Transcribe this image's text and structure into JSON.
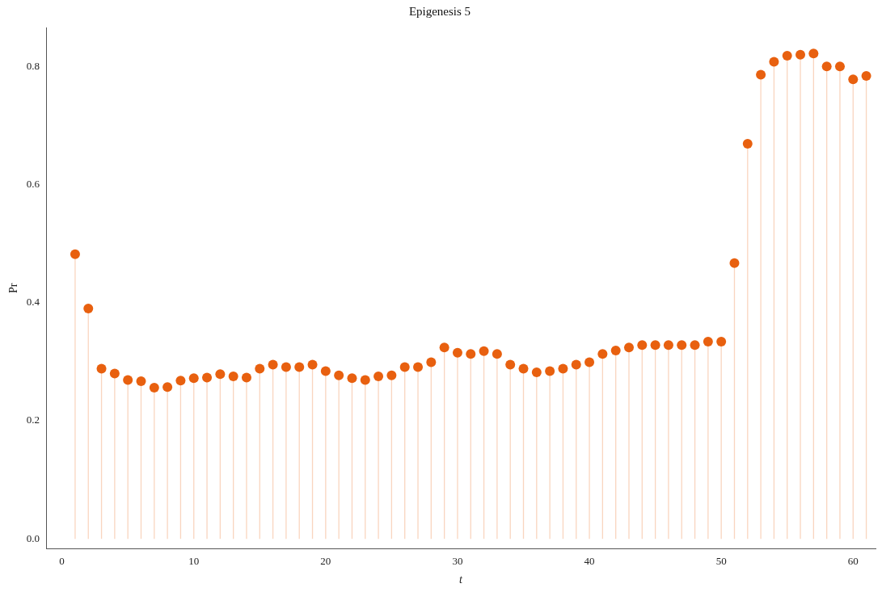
{
  "chart_data": {
    "type": "lollipop",
    "title": "Epigenesis 5",
    "xlabel": "t",
    "ylabel": "Pr",
    "x": [
      1,
      2,
      3,
      4,
      5,
      6,
      7,
      8,
      9,
      10,
      11,
      12,
      13,
      14,
      15,
      16,
      17,
      18,
      19,
      20,
      21,
      22,
      23,
      24,
      25,
      26,
      27,
      28,
      29,
      30,
      31,
      32,
      33,
      34,
      35,
      36,
      37,
      38,
      39,
      40,
      41,
      42,
      43,
      44,
      45,
      46,
      47,
      48,
      49,
      50,
      51,
      52,
      53,
      54,
      55,
      56,
      57,
      58,
      59,
      60,
      61
    ],
    "series": [
      {
        "color": "#e8600f",
        "values": [
          0.482,
          0.39,
          0.288,
          0.28,
          0.269,
          0.267,
          0.256,
          0.257,
          0.268,
          0.272,
          0.273,
          0.279,
          0.275,
          0.273,
          0.288,
          0.295,
          0.291,
          0.291,
          0.295,
          0.284,
          0.277,
          0.272,
          0.269,
          0.275,
          0.277,
          0.291,
          0.291,
          0.299,
          0.324,
          0.315,
          0.313,
          0.318,
          0.313,
          0.295,
          0.288,
          0.282,
          0.284,
          0.288,
          0.295,
          0.299,
          0.313,
          0.319,
          0.324,
          0.328,
          0.328,
          0.328,
          0.328,
          0.328,
          0.334,
          0.334,
          0.467,
          0.669,
          0.786,
          0.808,
          0.818,
          0.82,
          0.822,
          0.8,
          0.8,
          0.778,
          0.784
        ]
      }
    ],
    "xlim": [
      -1.2,
      61.7
    ],
    "ylim": [
      -0.017,
      0.866
    ],
    "xticks": [
      0,
      10,
      20,
      30,
      40,
      50,
      60
    ],
    "yticks": [
      {
        "value": 0,
        "label": "0.0"
      },
      {
        "value": 0.2,
        "label": "0.2"
      },
      {
        "value": 0.4,
        "label": "0.4"
      },
      {
        "value": 0.6,
        "label": "0.6"
      },
      {
        "value": 0.8,
        "label": "0.8"
      }
    ],
    "grid": false,
    "legend": false,
    "marker": "circle"
  }
}
